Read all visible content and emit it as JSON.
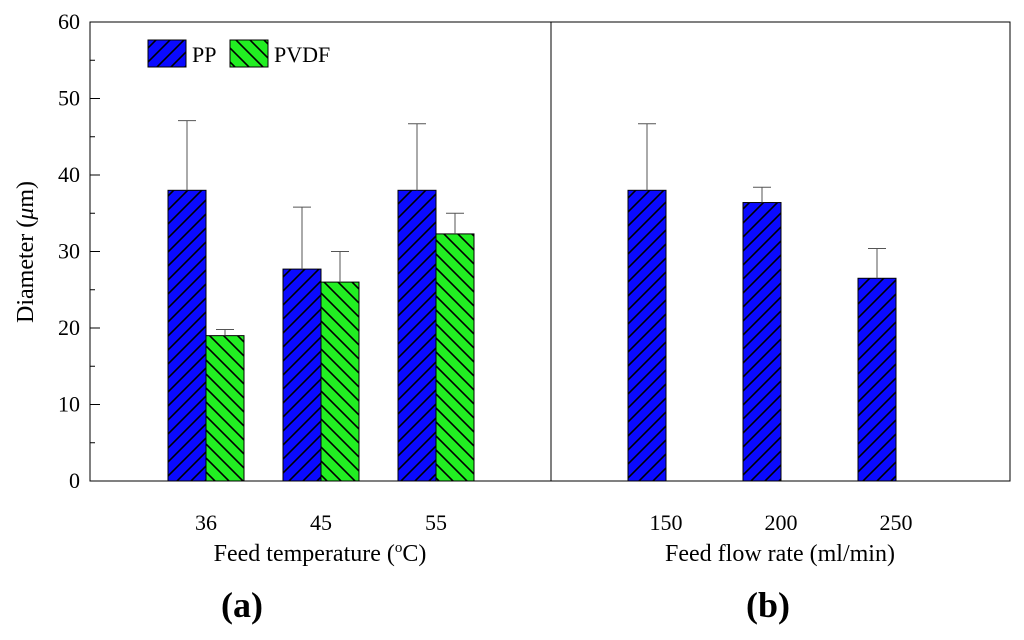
{
  "colors": {
    "pp": "#0a0aff",
    "pvdf": "#22ee22",
    "hatch": "#000000",
    "axis": "#000000"
  },
  "chart_data": {
    "type": "bar",
    "ylabel_prefix": "Diameter (",
    "ylabel_mu": "μ",
    "ylabel_suffix": "m)",
    "ylim": [
      0,
      60
    ],
    "yticks": [
      "0",
      "10",
      "20",
      "30",
      "40",
      "50",
      "60"
    ],
    "legend": [
      "PP",
      "PVDF"
    ],
    "panels": [
      {
        "label_open": "(",
        "label_letter": "a",
        "label_close": ")",
        "xlabel_prefix": "Feed temperature (",
        "xlabel_sup": "o",
        "xlabel_suffix": "C)",
        "categories": [
          "36",
          "45",
          "55"
        ],
        "series": [
          {
            "name": "PP",
            "values": [
              38,
              27.7,
              38
            ],
            "errors": [
              9.1,
              8.1,
              8.7
            ]
          },
          {
            "name": "PVDF",
            "values": [
              19,
              26,
              32.3
            ],
            "errors": [
              0.8,
              4,
              2.7
            ]
          }
        ]
      },
      {
        "label_open": "(",
        "label_letter": "b",
        "label_close": ")",
        "xlabel": "Feed flow rate (ml/min)",
        "categories": [
          "150",
          "200",
          "250"
        ],
        "series": [
          {
            "name": "PP",
            "values": [
              38,
              36.4,
              26.5
            ],
            "errors": [
              8.7,
              2,
              3.9
            ]
          }
        ]
      }
    ]
  }
}
